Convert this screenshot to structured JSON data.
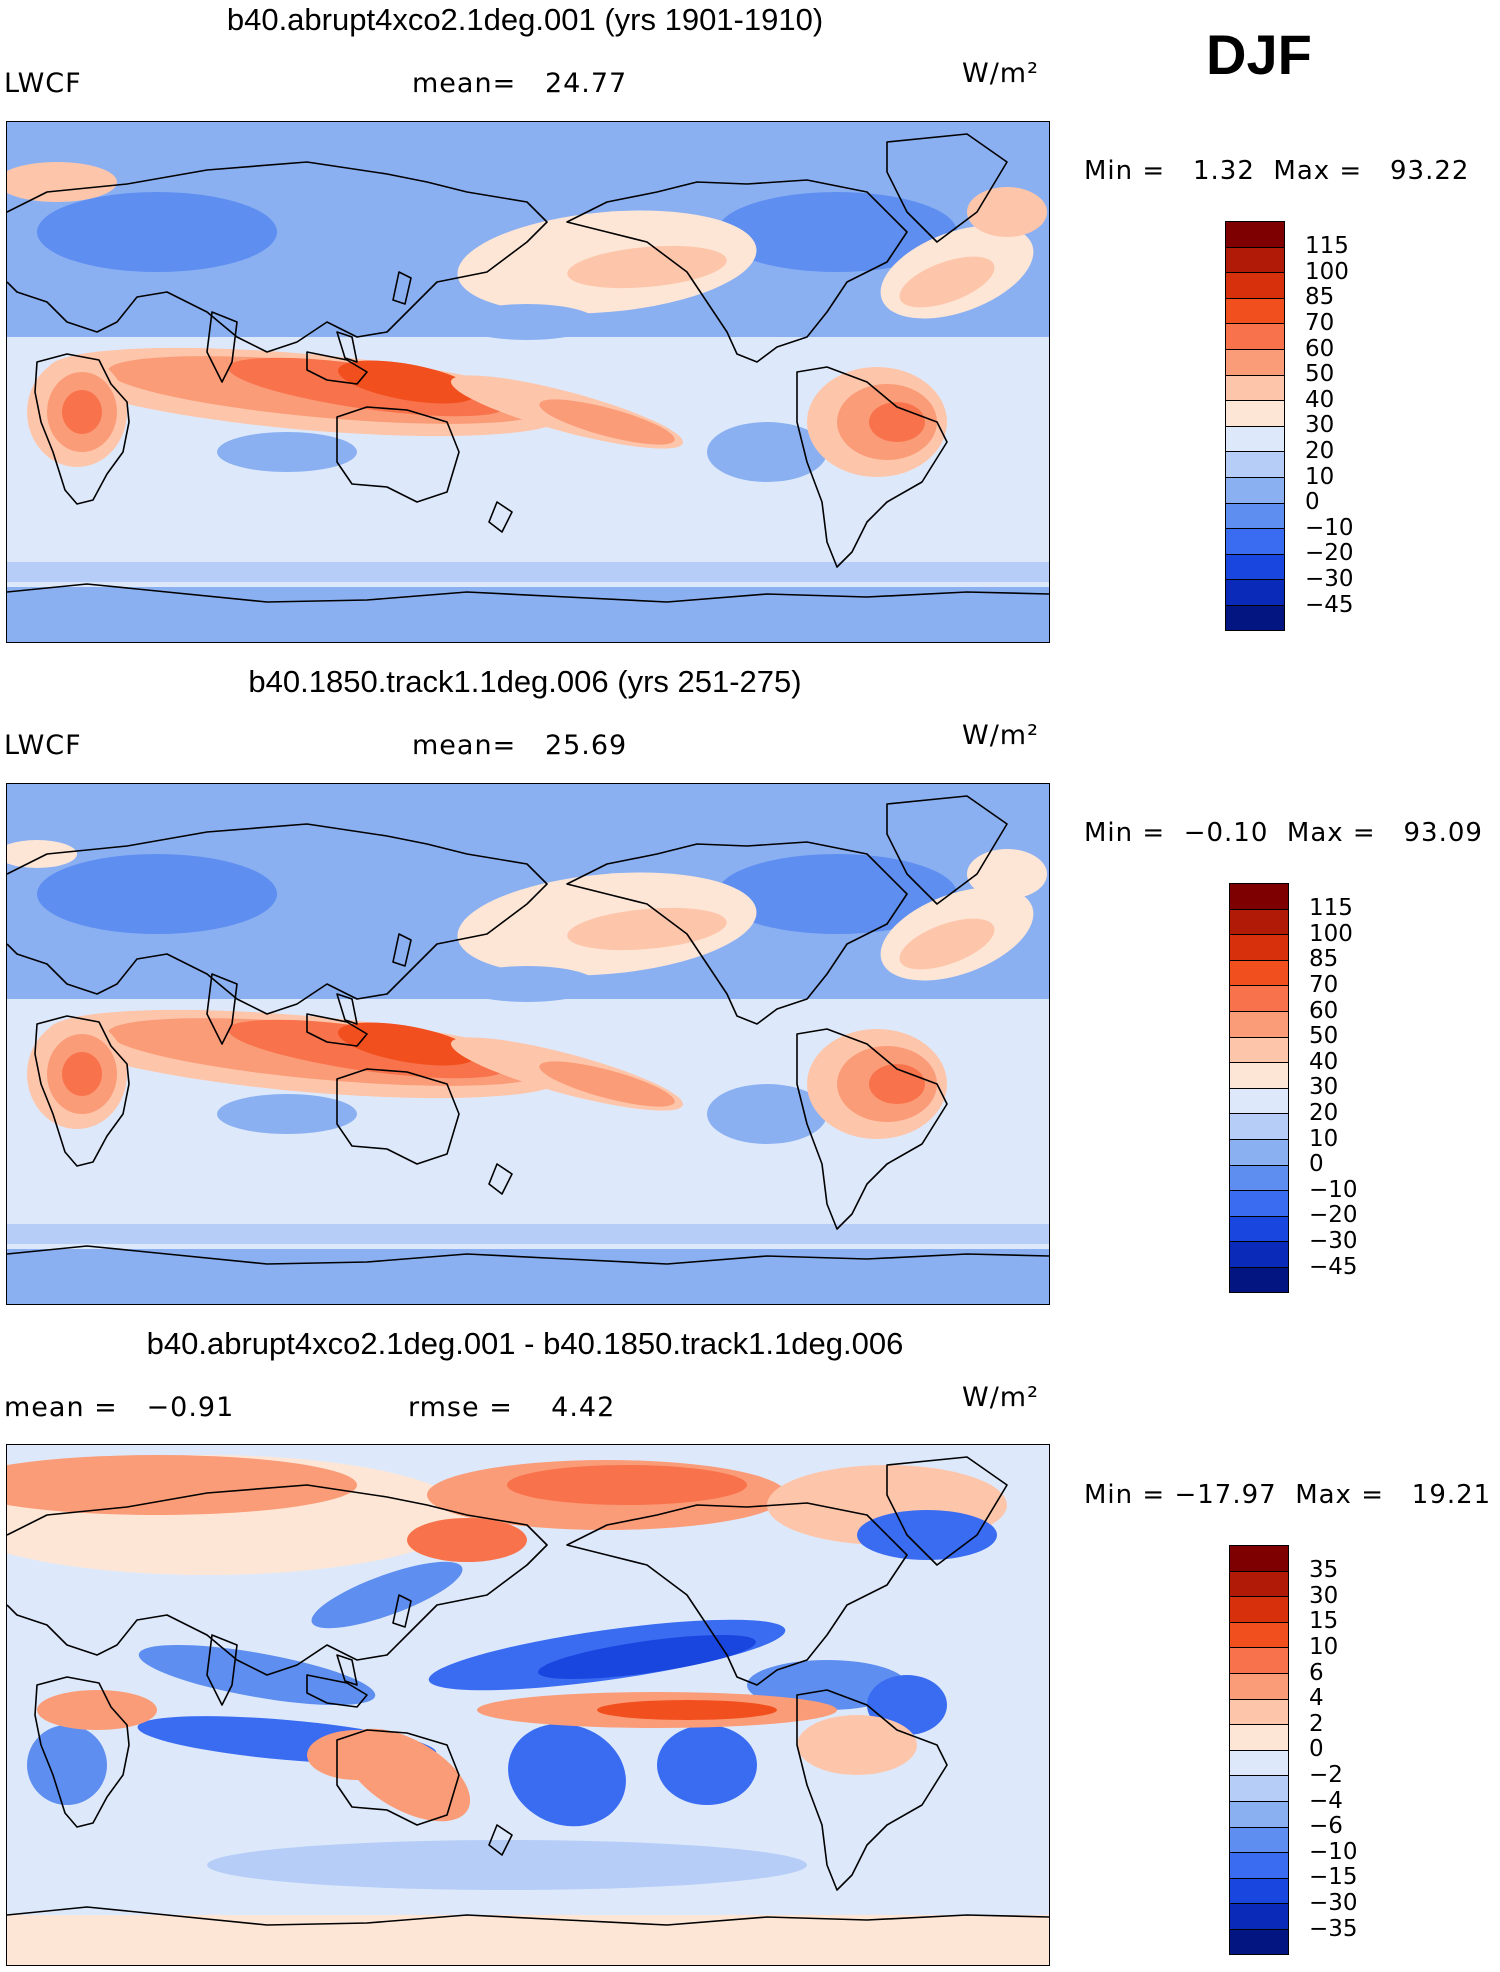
{
  "season": "DJF",
  "panels": [
    {
      "title": "b40.abrupt4xco2.1deg.001 (yrs 1901-1910)",
      "left_label": "LWCF",
      "mid_label": "mean=   24.77",
      "units": "W/m²",
      "minmax": "Min =   1.32  Max =   93.22",
      "variant": "a"
    },
    {
      "title": "b40.1850.track1.1deg.006 (yrs 251-275)",
      "left_label": "LWCF",
      "mid_label": "mean=   25.69",
      "units": "W/m²",
      "minmax": "Min =  −0.10  Max =   93.09",
      "variant": "b"
    },
    {
      "title": "b40.abrupt4xco2.1deg.001 - b40.1850.track1.1deg.006",
      "left_label": "mean =   −0.91",
      "mid_label": "rmse =    4.42",
      "units": "W/m²",
      "minmax": "Min = −17.97  Max =   19.21",
      "variant": "diff"
    }
  ],
  "colorbar_main": {
    "labels": [
      "115",
      "100",
      "85",
      "70",
      "60",
      "50",
      "40",
      "30",
      "20",
      "10",
      "0",
      "−10",
      "−20",
      "−30",
      "−45"
    ],
    "colors": [
      "#7f0000",
      "#b01a07",
      "#d6300d",
      "#f24f1f",
      "#f8734c",
      "#fb9c78",
      "#fdc6ab",
      "#fde6d6",
      "#dde9fb",
      "#b6cdf7",
      "#8bb0f2",
      "#5e8ef0",
      "#3a6cf2",
      "#1a46e0",
      "#0a2aba",
      "#021580"
    ]
  },
  "colorbar_diff": {
    "labels": [
      "35",
      "30",
      "15",
      "10",
      "6",
      "4",
      "2",
      "0",
      "−2",
      "−4",
      "−6",
      "−10",
      "−15",
      "−30",
      "−35"
    ],
    "colors": [
      "#7f0000",
      "#b01a07",
      "#d6300d",
      "#f24f1f",
      "#f8734c",
      "#fb9c78",
      "#fdc6ab",
      "#fde6d6",
      "#dde9fb",
      "#b6cdf7",
      "#8bb0f2",
      "#5e8ef0",
      "#3a6cf2",
      "#1a46e0",
      "#0a2aba",
      "#021580"
    ]
  }
}
